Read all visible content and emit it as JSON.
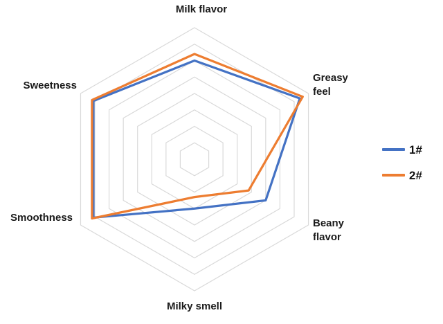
{
  "chart_data": {
    "type": "radar",
    "title": "",
    "categories": [
      "Milk flavor",
      "Greasy feel",
      "Beany flavor",
      "Milky smell",
      "Smoothness",
      "Sweetness"
    ],
    "series": [
      {
        "name": "1#",
        "color": "#4472C4",
        "values": [
          6.0,
          7.4,
          5.0,
          3.0,
          7.1,
          7.1
        ]
      },
      {
        "name": "2#",
        "color": "#ED7D31",
        "values": [
          6.4,
          7.6,
          3.8,
          2.3,
          7.2,
          7.2
        ]
      }
    ],
    "axis": {
      "min": 0,
      "max": 8,
      "rings": 8,
      "grid_color": "#D9D9D9",
      "spokes": false
    },
    "legend": {
      "position": "right",
      "entries": [
        "1#",
        "2#"
      ]
    }
  }
}
